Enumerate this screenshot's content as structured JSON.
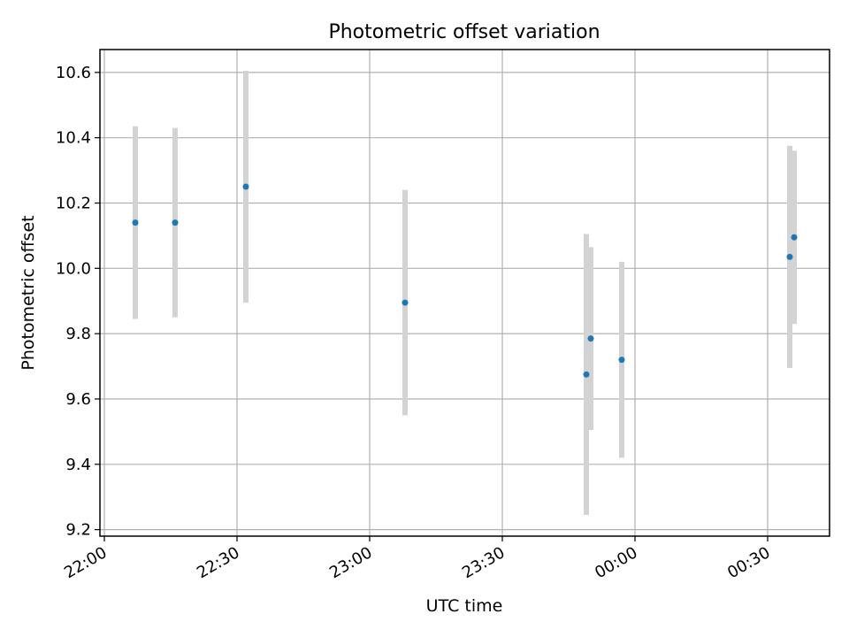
{
  "chart_data": {
    "type": "scatter",
    "title": "Photometric offset variation",
    "xlabel": "UTC time",
    "ylabel": "Photometric offset",
    "grid": true,
    "x_tick_labels": [
      "22:00",
      "22:30",
      "23:00",
      "23:30",
      "00:00",
      "00:30"
    ],
    "x_ticks": [
      "22:00",
      "22:30",
      "23:00",
      "23:30",
      "24:00",
      "24:30"
    ],
    "y_ticks": [
      9.2,
      9.4,
      9.6,
      9.8,
      10.0,
      10.2,
      10.4,
      10.6
    ],
    "xlim": [
      "21:59",
      "24:44"
    ],
    "ylim": [
      9.18,
      10.67
    ],
    "marker_color": "#1f77b4",
    "errorbar_color": "#d3d3d3",
    "points": [
      {
        "x": "22:07",
        "y": 10.14,
        "err": 0.295
      },
      {
        "x": "22:16",
        "y": 10.14,
        "err": 0.29
      },
      {
        "x": "22:32",
        "y": 10.25,
        "err": 0.355
      },
      {
        "x": "23:08",
        "y": 9.895,
        "err": 0.345
      },
      {
        "x": "23:49",
        "y": 9.675,
        "err": 0.43
      },
      {
        "x": "23:50",
        "y": 9.785,
        "err": 0.28
      },
      {
        "x": "23:57",
        "y": 9.72,
        "err": 0.3
      },
      {
        "x": "24:35",
        "y": 10.035,
        "err": 0.34
      },
      {
        "x": "24:36",
        "y": 10.095,
        "err": 0.265
      }
    ]
  }
}
